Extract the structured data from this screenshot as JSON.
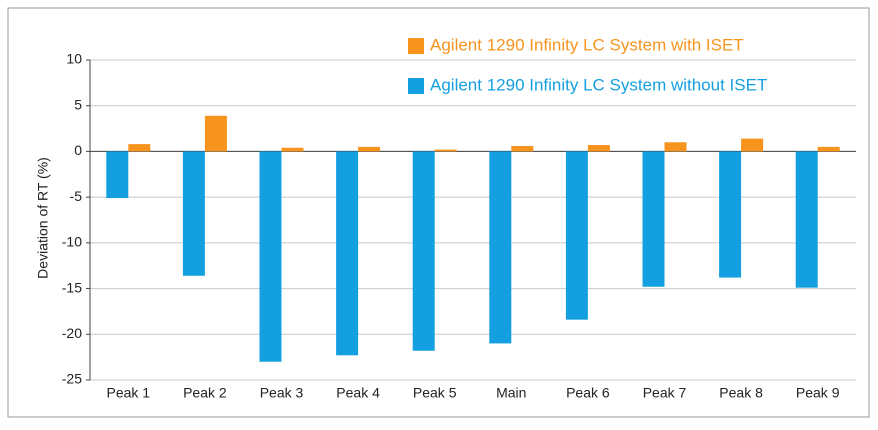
{
  "chart_data": {
    "type": "bar",
    "y_label": "Deviation of RT (%)",
    "categories": [
      "Peak 1",
      "Peak 2",
      "Peak 3",
      "Peak 4",
      "Peak 5",
      "Main",
      "Peak 6",
      "Peak 7",
      "Peak 8",
      "Peak 9"
    ],
    "series": [
      {
        "name": "Agilent 1290 Infinity LC System without ISET",
        "color": "#14a0e0",
        "values": [
          -5.1,
          -13.6,
          -23.0,
          -22.3,
          -21.8,
          -21.0,
          -18.4,
          -14.8,
          -13.8,
          -14.9
        ]
      },
      {
        "name": "Agilent 1290 Infinity LC System with ISET",
        "color": "#f7941d",
        "values": [
          0.8,
          3.9,
          0.4,
          0.5,
          0.2,
          0.6,
          0.7,
          1.0,
          1.4,
          0.5
        ]
      }
    ],
    "legend_order": [
      1,
      0
    ],
    "ylim": [
      -25,
      10
    ],
    "yticks": [
      -25,
      -20,
      -15,
      -10,
      -5,
      0,
      5,
      10
    ],
    "grid": true
  }
}
